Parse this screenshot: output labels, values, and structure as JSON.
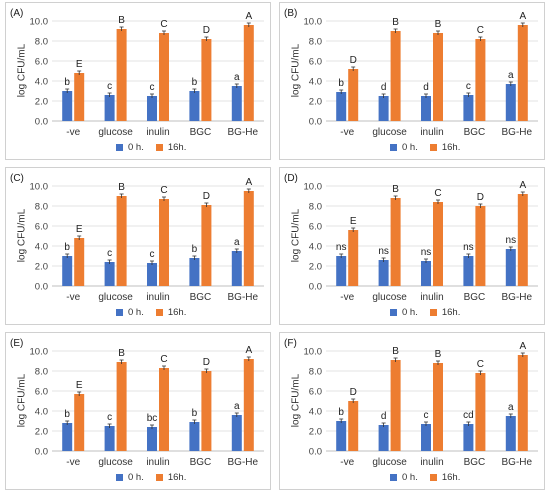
{
  "legend": [
    "0 h.",
    "16h."
  ],
  "colors": {
    "series_0h": "#4472c4",
    "series_16h": "#ed7d31"
  },
  "chart_data": [
    {
      "label": "(A)",
      "type": "bar",
      "categories": [
        "-ve",
        "glucose",
        "inulin",
        "BGC",
        "BG-He"
      ],
      "ylabel": "log CFU/mL",
      "ylim": [
        0,
        10
      ],
      "yticks": [
        "0.0",
        "2.0",
        "4.0",
        "6.0",
        "8.0",
        "10.0"
      ],
      "series": [
        {
          "name": "0 h.",
          "values": [
            3.0,
            2.6,
            2.5,
            3.0,
            3.5
          ],
          "letters": [
            "b",
            "c",
            "c",
            "b",
            "a"
          ]
        },
        {
          "name": "16h.",
          "values": [
            4.8,
            9.2,
            8.8,
            8.2,
            9.6
          ],
          "letters": [
            "E",
            "B",
            "C",
            "D",
            "A"
          ]
        }
      ]
    },
    {
      "label": "(B)",
      "type": "bar",
      "categories": [
        "-ve",
        "glucose",
        "inulin",
        "BGC",
        "BG-He"
      ],
      "ylabel": "log CFU/mL",
      "ylim": [
        0,
        10
      ],
      "yticks": [
        "0.0",
        "2.0",
        "4.0",
        "6.0",
        "8.0",
        "10.0"
      ],
      "series": [
        {
          "name": "0 h.",
          "values": [
            2.9,
            2.5,
            2.5,
            2.6,
            3.7
          ],
          "letters": [
            "b",
            "d",
            "d",
            "c",
            "a"
          ]
        },
        {
          "name": "16h.",
          "values": [
            5.2,
            9.0,
            8.8,
            8.2,
            9.6
          ],
          "letters": [
            "D",
            "B",
            "B",
            "C",
            "A"
          ]
        }
      ]
    },
    {
      "label": "(C)",
      "type": "bar",
      "categories": [
        "-ve",
        "glucose",
        "inulin",
        "BGC",
        "BG-He"
      ],
      "ylabel": "log CFU/mL",
      "ylim": [
        0,
        10
      ],
      "yticks": [
        "0.0",
        "2.0",
        "4.0",
        "6.0",
        "8.0",
        "10.0"
      ],
      "series": [
        {
          "name": "0 h.",
          "values": [
            3.0,
            2.4,
            2.3,
            2.8,
            3.5
          ],
          "letters": [
            "b",
            "c",
            "c",
            "b",
            "a"
          ]
        },
        {
          "name": "16h.",
          "values": [
            4.8,
            9.0,
            8.7,
            8.1,
            9.5
          ],
          "letters": [
            "E",
            "B",
            "C",
            "D",
            "A"
          ]
        }
      ]
    },
    {
      "label": "(D)",
      "type": "bar",
      "categories": [
        "-ve",
        "glucose",
        "inulin",
        "BGC",
        "BG-He"
      ],
      "ylabel": "log CFU/mL",
      "ylim": [
        0,
        10
      ],
      "yticks": [
        "0.0",
        "2.0",
        "4.0",
        "6.0",
        "8.0",
        "10.0"
      ],
      "series": [
        {
          "name": "0 h.",
          "values": [
            3.0,
            2.6,
            2.5,
            3.0,
            3.7
          ],
          "letters": [
            "ns",
            "ns",
            "ns",
            "ns",
            "ns"
          ]
        },
        {
          "name": "16h.",
          "values": [
            5.6,
            8.8,
            8.4,
            8.0,
            9.2
          ],
          "letters": [
            "E",
            "B",
            "C",
            "D",
            "A"
          ]
        }
      ]
    },
    {
      "label": "(E)",
      "type": "bar",
      "categories": [
        "-ve",
        "glucose",
        "inulin",
        "BGC",
        "BG-He"
      ],
      "ylabel": "log CFU/mL",
      "ylim": [
        0,
        10
      ],
      "yticks": [
        "0.0",
        "2.0",
        "4.0",
        "6.0",
        "8.0",
        "10.0"
      ],
      "series": [
        {
          "name": "0 h.",
          "values": [
            2.8,
            2.5,
            2.4,
            2.9,
            3.6
          ],
          "letters": [
            "b",
            "c",
            "bc",
            "b",
            "a"
          ]
        },
        {
          "name": "16h.",
          "values": [
            5.7,
            8.9,
            8.3,
            8.0,
            9.2
          ],
          "letters": [
            "E",
            "B",
            "C",
            "D",
            "A"
          ]
        }
      ]
    },
    {
      "label": "(F)",
      "type": "bar",
      "categories": [
        "-ve",
        "glucose",
        "inulin",
        "BGC",
        "BG-He"
      ],
      "ylabel": "log CFU/mL",
      "ylim": [
        0,
        10
      ],
      "yticks": [
        "0.0",
        "2.0",
        "4.0",
        "6.0",
        "8.0",
        "10.0"
      ],
      "series": [
        {
          "name": "0 h.",
          "values": [
            3.0,
            2.6,
            2.7,
            2.7,
            3.5
          ],
          "letters": [
            "b",
            "d",
            "c",
            "cd",
            "a"
          ]
        },
        {
          "name": "16h.",
          "values": [
            5.0,
            9.1,
            8.8,
            7.8,
            9.6
          ],
          "letters": [
            "D",
            "B",
            "B",
            "C",
            "A"
          ]
        }
      ]
    }
  ]
}
